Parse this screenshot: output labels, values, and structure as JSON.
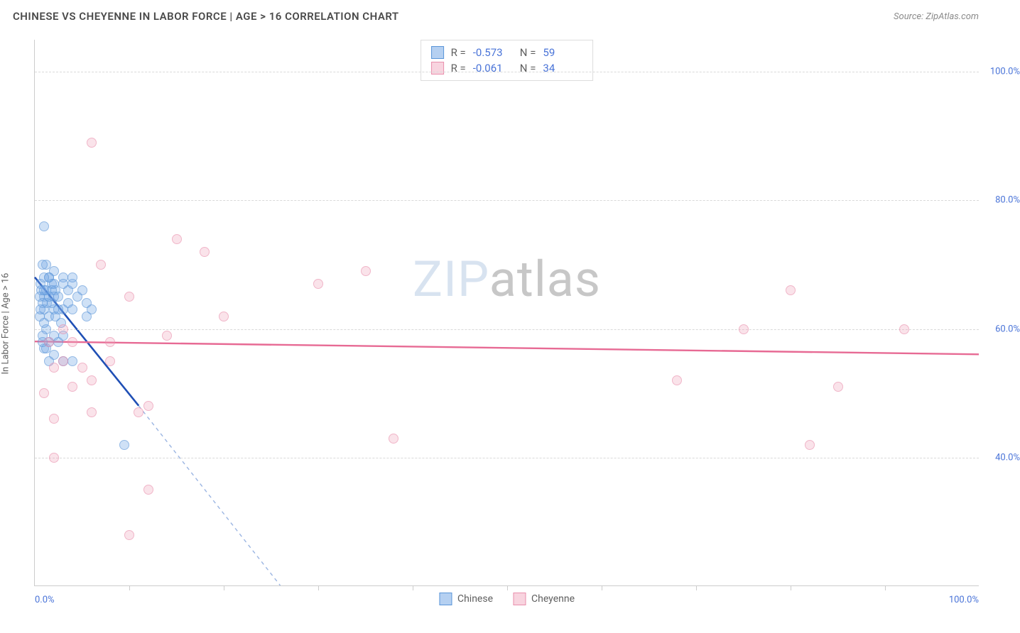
{
  "header": {
    "title": "CHINESE VS CHEYENNE IN LABOR FORCE | AGE > 16 CORRELATION CHART",
    "source": "Source: ZipAtlas.com"
  },
  "watermark": {
    "part1": "ZIP",
    "part2": "atlas"
  },
  "axes": {
    "y_title": "In Labor Force | Age > 16",
    "x_min_label": "0.0%",
    "x_max_label": "100.0%",
    "y_ticks": [
      {
        "pct": 40,
        "label": "40.0%"
      },
      {
        "pct": 60,
        "label": "60.0%"
      },
      {
        "pct": 80,
        "label": "80.0%"
      },
      {
        "pct": 100,
        "label": "100.0%"
      }
    ],
    "x_tick_positions_pct": [
      10,
      20,
      30,
      40,
      50,
      60,
      70,
      80,
      90
    ],
    "ylim": [
      20,
      105
    ],
    "xlim": [
      0,
      100
    ]
  },
  "grid_color": "#d9d9d9",
  "chart": {
    "type": "scatter",
    "background_color": "#ffffff",
    "series": [
      {
        "name": "Chinese",
        "color_fill": "rgba(120,170,230,0.55)",
        "color_stroke": "#5a95d8",
        "marker_radius_px": 7,
        "trend": {
          "x1": 0,
          "y1": 68,
          "x2": 11,
          "y2": 48,
          "stroke": "#1f4fb5",
          "width": 2.6,
          "extend": {
            "x2": 26,
            "y2": 20,
            "dash": "5,5",
            "stroke": "#9bb5e2"
          }
        },
        "points": [
          [
            1.0,
            76
          ],
          [
            1.2,
            70
          ],
          [
            0.8,
            70
          ],
          [
            1.5,
            68
          ],
          [
            2.0,
            69
          ],
          [
            0.6,
            67
          ],
          [
            1.8,
            67
          ],
          [
            2.2,
            66
          ],
          [
            3.0,
            68
          ],
          [
            1.0,
            65
          ],
          [
            1.3,
            64
          ],
          [
            0.7,
            66
          ],
          [
            2.5,
            65
          ],
          [
            3.5,
            66
          ],
          [
            4.0,
            67
          ],
          [
            1.0,
            63
          ],
          [
            1.5,
            62
          ],
          [
            2.0,
            63
          ],
          [
            3.0,
            63
          ],
          [
            4.5,
            65
          ],
          [
            5.0,
            66
          ],
          [
            0.5,
            62
          ],
          [
            1.2,
            60
          ],
          [
            2.8,
            61
          ],
          [
            5.5,
            64
          ],
          [
            6.0,
            63
          ],
          [
            0.8,
            59
          ],
          [
            1.5,
            58
          ],
          [
            2.0,
            59
          ],
          [
            2.5,
            58
          ],
          [
            3.0,
            55
          ],
          [
            1.0,
            57
          ],
          [
            0.5,
            65
          ],
          [
            1.8,
            64
          ],
          [
            2.2,
            62
          ],
          [
            4.0,
            55
          ],
          [
            1.5,
            68
          ],
          [
            2.0,
            67
          ],
          [
            0.8,
            64
          ],
          [
            1.2,
            66
          ],
          [
            3.5,
            64
          ],
          [
            1.0,
            61
          ],
          [
            2.5,
            63
          ],
          [
            1.8,
            66
          ],
          [
            0.6,
            63
          ],
          [
            3.0,
            67
          ],
          [
            4.0,
            63
          ],
          [
            1.5,
            65
          ],
          [
            2.0,
            65
          ],
          [
            1.0,
            68
          ],
          [
            5.5,
            62
          ],
          [
            1.2,
            57
          ],
          [
            0.8,
            58
          ],
          [
            3.0,
            59
          ],
          [
            2.0,
            56
          ],
          [
            1.5,
            55
          ],
          [
            9.5,
            42
          ],
          [
            4.0,
            68
          ],
          [
            1.0,
            66
          ]
        ]
      },
      {
        "name": "Cheyenne",
        "color_fill": "rgba(240,160,185,0.45)",
        "color_stroke": "#e98fac",
        "marker_radius_px": 7,
        "trend": {
          "x1": 0,
          "y1": 58,
          "x2": 100,
          "y2": 56,
          "stroke": "#e76a94",
          "width": 2.4
        },
        "points": [
          [
            6.0,
            89
          ],
          [
            15.0,
            74
          ],
          [
            18.0,
            72
          ],
          [
            35.0,
            69
          ],
          [
            30.0,
            67
          ],
          [
            80.0,
            66
          ],
          [
            10.0,
            65
          ],
          [
            20.0,
            62
          ],
          [
            92.0,
            60
          ],
          [
            75.0,
            60
          ],
          [
            8.0,
            58
          ],
          [
            4.0,
            58
          ],
          [
            3.0,
            55
          ],
          [
            5.0,
            54
          ],
          [
            2.0,
            54
          ],
          [
            68.0,
            52
          ],
          [
            85.0,
            51
          ],
          [
            6.0,
            47
          ],
          [
            11.0,
            47
          ],
          [
            12.0,
            48
          ],
          [
            2.0,
            46
          ],
          [
            38.0,
            43
          ],
          [
            82.0,
            42
          ],
          [
            2.0,
            40
          ],
          [
            12.0,
            35
          ],
          [
            10.0,
            28
          ],
          [
            1.0,
            50
          ],
          [
            4.0,
            51
          ],
          [
            6.0,
            52
          ],
          [
            7.0,
            70
          ],
          [
            1.5,
            58
          ],
          [
            3.0,
            60
          ],
          [
            8.0,
            55
          ],
          [
            14.0,
            59
          ]
        ]
      }
    ]
  },
  "stats_legend": {
    "rows": [
      {
        "swatch": "blue",
        "r": "-0.573",
        "n": "59"
      },
      {
        "swatch": "pink",
        "r": "-0.061",
        "n": "34"
      }
    ],
    "r_label": "R =",
    "n_label": "N ="
  },
  "bottom_legend": {
    "items": [
      {
        "swatch": "blue",
        "label": "Chinese"
      },
      {
        "swatch": "pink",
        "label": "Cheyenne"
      }
    ]
  }
}
